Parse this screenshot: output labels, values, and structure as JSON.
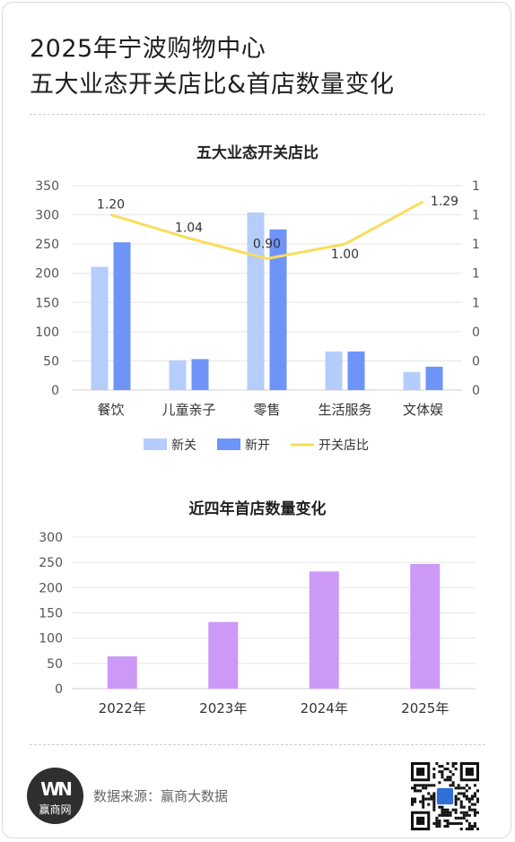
{
  "title": {
    "line1": "2025年宁波购物中心",
    "line2": "五大业态开关店比&首店数量变化"
  },
  "chart_data": [
    {
      "type": "bar",
      "title": "五大业态开关店比",
      "categories": [
        "餐饮",
        "儿童亲子",
        "零售",
        "生活服务",
        "文体娱"
      ],
      "series": [
        {
          "name": "新关",
          "type": "bar",
          "values": [
            211,
            51,
            304,
            66,
            31
          ],
          "color": "#b4cdfb"
        },
        {
          "name": "新开",
          "type": "bar",
          "values": [
            253,
            53,
            275,
            66,
            40
          ],
          "color": "#6e94f7"
        },
        {
          "name": "开关店比",
          "type": "line",
          "axis": "right",
          "values": [
            1.2,
            1.04,
            0.9,
            1.0,
            1.29
          ],
          "data_labels": [
            "1.20",
            "1.04",
            "0.90",
            "1.00",
            "1.29"
          ],
          "color": "#f9dd5a"
        }
      ],
      "ylim": [
        0,
        350
      ],
      "y_ticks": [
        "0",
        "50",
        "100",
        "150",
        "200",
        "250",
        "300",
        "350"
      ],
      "y2_ticks": [
        "0",
        "0",
        "0",
        "1",
        "1",
        "1",
        "1",
        "1"
      ],
      "y2lim": [
        0,
        1.4
      ],
      "grid": true,
      "legend": "bottom-center"
    },
    {
      "type": "bar",
      "title": "近四年首店数量变化",
      "categories": [
        "2022年",
        "2023年",
        "2024年",
        "2025年"
      ],
      "series": [
        {
          "values": [
            64,
            132,
            232,
            247
          ],
          "color": "#cc99f7"
        }
      ],
      "ylim": [
        0,
        300
      ],
      "y_ticks": [
        "0",
        "50",
        "100",
        "150",
        "200",
        "250",
        "300"
      ],
      "grid": true
    }
  ],
  "footer": {
    "logo_mark": "WN",
    "logo_text": "赢商网",
    "source": "数据来源：赢商大数据"
  }
}
